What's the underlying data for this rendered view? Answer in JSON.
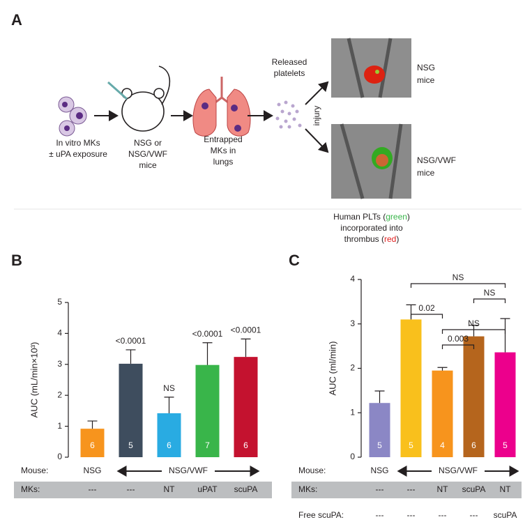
{
  "panel_a": {
    "label": "A",
    "cells": [
      "In vitro MKs",
      "± uPA exposure"
    ],
    "mouse": [
      "NSG or",
      "NSG/VWF",
      "mice"
    ],
    "lungs": [
      "Entrapped",
      "MKs in",
      "lungs"
    ],
    "platelets": [
      "Released",
      "platelets"
    ],
    "injury": "injury",
    "top_result": [
      "NSG",
      "mice"
    ],
    "bottom_result": [
      "NSG/VWF",
      "mice"
    ],
    "caption": [
      [
        "Human PLTs (",
        "green",
        ")"
      ],
      [
        "incorporated into"
      ],
      [
        "thrombus  (",
        "red",
        ")"
      ]
    ]
  },
  "chart_data": [
    {
      "type": "bar",
      "panel": "B",
      "y_label": "AUC (mL/min×10³)",
      "categories": [
        "---",
        "---",
        "NT",
        "uPAT",
        "scuPA"
      ],
      "values": [
        0.92,
        3.02,
        1.42,
        2.98,
        3.24
      ],
      "errors": [
        0.25,
        0.45,
        0.52,
        0.72,
        0.58
      ],
      "colors": [
        "#f7941d",
        "#3e4d5e",
        "#29abe2",
        "#39b54a",
        "#c4122f"
      ],
      "n": [
        6,
        5,
        6,
        7,
        6
      ],
      "p_labels": [
        null,
        "<0.0001",
        "NS",
        "<0.0001",
        "<0.0001"
      ],
      "ylim": [
        0,
        5
      ],
      "yticks": [
        0,
        1,
        2,
        3,
        4,
        5
      ],
      "row_labels": [
        "Mouse:",
        "MKs:"
      ],
      "mouse_labels": [
        "NSG",
        "NSG/VWF"
      ]
    },
    {
      "type": "bar",
      "panel": "C",
      "y_label": "AUC (ml/min)",
      "categories": [
        "---",
        "---",
        "NT",
        "scuPA",
        "NT"
      ],
      "values": [
        1.22,
        3.1,
        1.95,
        2.72,
        2.36
      ],
      "errors": [
        0.27,
        0.33,
        0.07,
        0.25,
        0.76
      ],
      "colors": [
        "#8b87c5",
        "#f9c01c",
        "#f7941d",
        "#b5651d",
        "#ec008c"
      ],
      "n": [
        5,
        5,
        4,
        6,
        5
      ],
      "ylim": [
        0,
        4
      ],
      "yticks": [
        0,
        1,
        2,
        3,
        4
      ],
      "row_labels": [
        "Mouse:",
        "MKs:"
      ],
      "mouse_labels": [
        "NSG",
        "NSG/VWF"
      ],
      "extra_row": {
        "label": "Free scuPA:",
        "values": [
          "---",
          "---",
          "---",
          "---",
          "scuPA"
        ]
      },
      "brackets": [
        {
          "from": 1,
          "to": 4,
          "label": "NS"
        },
        {
          "from": 3,
          "to": 4,
          "label": "NS"
        },
        {
          "from": 1,
          "to": 2,
          "label": "0.02"
        },
        {
          "from": 2,
          "to": 4,
          "label": "NS"
        },
        {
          "from": 2,
          "to": 3,
          "label": "0.003"
        }
      ]
    }
  ]
}
